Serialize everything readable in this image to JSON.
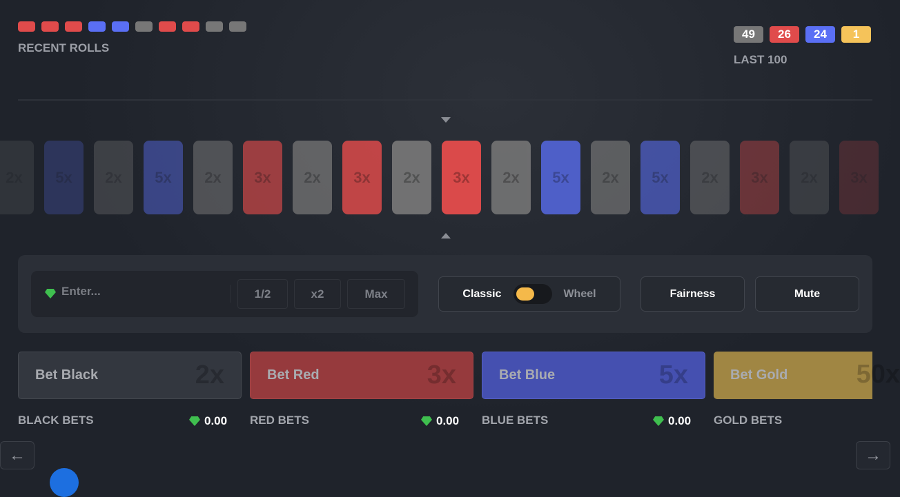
{
  "colors": {
    "black": "#777777",
    "red": "#e04b4b",
    "blue": "#5a6ff5",
    "gold": "#f5c35a"
  },
  "recent": {
    "label": "RECENT ROLLS",
    "rolls": [
      "red",
      "red",
      "red",
      "blue",
      "blue",
      "black",
      "red",
      "red",
      "black",
      "black"
    ]
  },
  "last100": {
    "label": "LAST 100",
    "counts": [
      {
        "color": "black",
        "value": "49"
      },
      {
        "color": "red",
        "value": "26"
      },
      {
        "color": "blue",
        "value": "24"
      },
      {
        "color": "gold",
        "value": "1"
      }
    ]
  },
  "strip": [
    {
      "c": "black",
      "t": "2x"
    },
    {
      "c": "blue",
      "t": "5x"
    },
    {
      "c": "black",
      "t": "2x"
    },
    {
      "c": "blue",
      "t": "5x"
    },
    {
      "c": "black",
      "t": "2x"
    },
    {
      "c": "red",
      "t": "3x"
    },
    {
      "c": "black",
      "t": "2x"
    },
    {
      "c": "red",
      "t": "3x"
    },
    {
      "c": "black",
      "t": "2x"
    },
    {
      "c": "red",
      "t": "3x"
    },
    {
      "c": "black",
      "t": "2x"
    },
    {
      "c": "blue",
      "t": "5x"
    },
    {
      "c": "black",
      "t": "2x"
    },
    {
      "c": "blue",
      "t": "5x"
    },
    {
      "c": "black",
      "t": "2x"
    },
    {
      "c": "red",
      "t": "3x"
    },
    {
      "c": "black",
      "t": "2x"
    },
    {
      "c": "red",
      "t": "3x"
    }
  ],
  "controls": {
    "placeholder": "Enter...",
    "half": "1/2",
    "double": "x2",
    "max": "Max",
    "classic": "Classic",
    "wheel": "Wheel",
    "fairness": "Fairness",
    "mute": "Mute"
  },
  "bets": [
    {
      "label": "Bet Black",
      "mult": "2x",
      "title": "BLACK BETS",
      "amount": "0.00"
    },
    {
      "label": "Bet Red",
      "mult": "3x",
      "title": "RED BETS",
      "amount": "0.00"
    },
    {
      "label": "Bet Blue",
      "mult": "5x",
      "title": "BLUE BETS",
      "amount": "0.00"
    },
    {
      "label": "Bet Gold",
      "mult": "50x",
      "title": "GOLD BETS"
    }
  ],
  "nav": {
    "prev": "←",
    "next": "→"
  }
}
